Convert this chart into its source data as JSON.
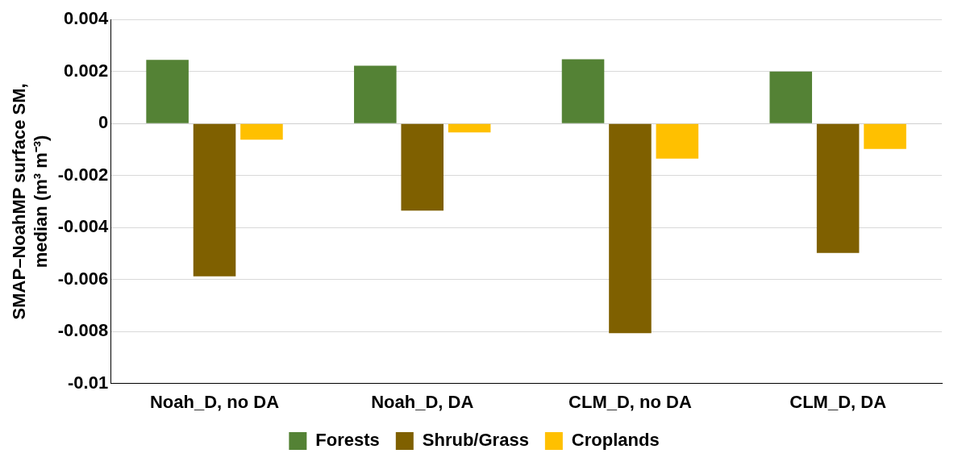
{
  "chart_data": {
    "type": "bar",
    "ylabel": "SMAP–NoahMP surface SM,\nmedian (m³ m⁻³)",
    "categories": [
      "Noah_D, no DA",
      "Noah_D, DA",
      "CLM_D, no DA",
      "CLM_D, DA"
    ],
    "series": [
      {
        "name": "Forests",
        "color": "#548235",
        "values": [
          0.00245,
          0.00222,
          0.00247,
          0.002
        ]
      },
      {
        "name": "Shrub/Grass",
        "color": "#7f6000",
        "values": [
          -0.00588,
          -0.00335,
          -0.00807,
          -0.00498
        ]
      },
      {
        "name": "Croplands",
        "color": "#ffc000",
        "values": [
          -0.00062,
          -0.00034,
          -0.00135,
          -0.00098
        ]
      }
    ],
    "ylim": [
      -0.01,
      0.004
    ],
    "yticks": [
      -0.01,
      -0.008,
      -0.006,
      -0.004,
      -0.002,
      0,
      0.002,
      0.004
    ],
    "grid": "y",
    "legend": "bottom"
  }
}
